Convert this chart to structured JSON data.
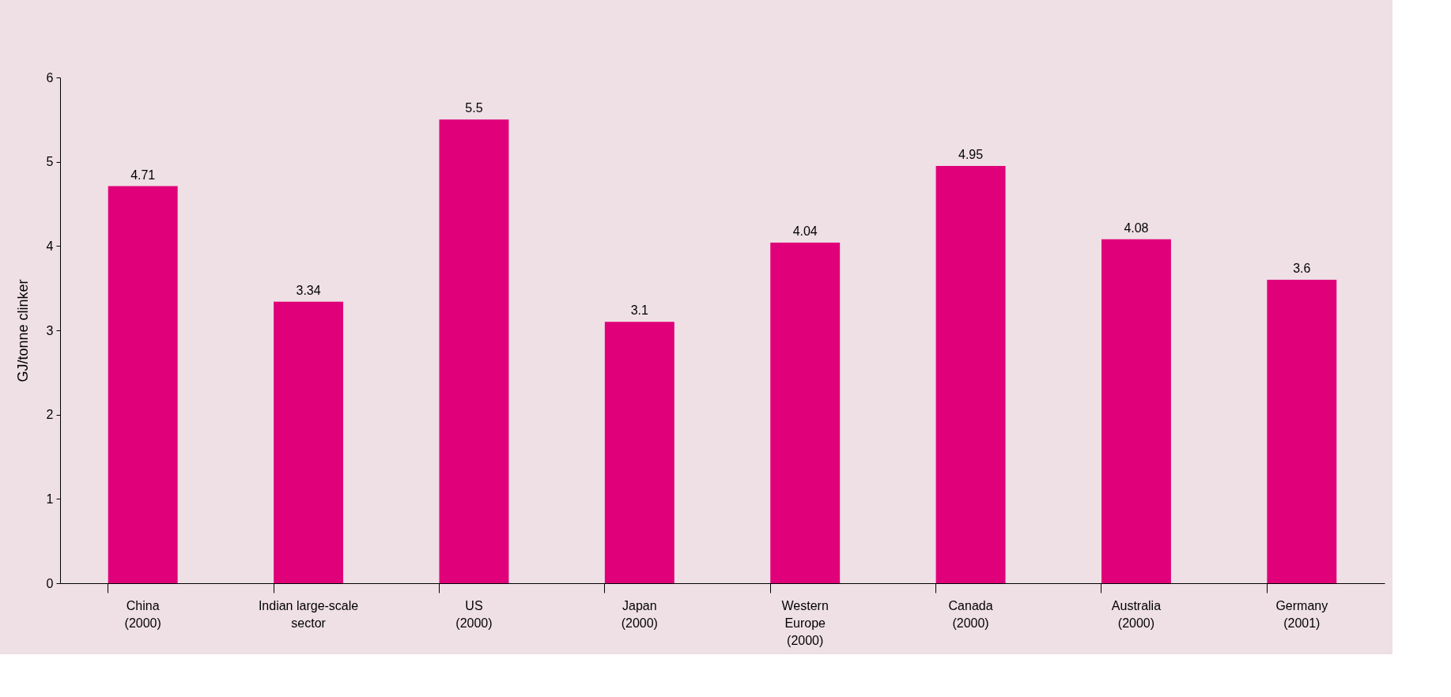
{
  "chart_data": {
    "type": "bar",
    "categories": [
      "China\n(2000)",
      "Indian large-scale\nsector",
      "US\n(2000)",
      "Japan\n(2000)",
      "Western\nEurope\n(2000)",
      "Canada\n(2000)",
      "Australia\n(2000)",
      "Germany\n(2001)"
    ],
    "values": [
      4.71,
      3.34,
      5.5,
      3.1,
      4.04,
      4.95,
      4.08,
      3.6
    ],
    "color": "#e0007a",
    "ylabel": "GJ/tonne clinker",
    "ylim": [
      0,
      6
    ],
    "yticks": [
      0,
      1,
      2,
      3,
      4,
      5,
      6
    ],
    "data_labels": true,
    "grid": false
  }
}
